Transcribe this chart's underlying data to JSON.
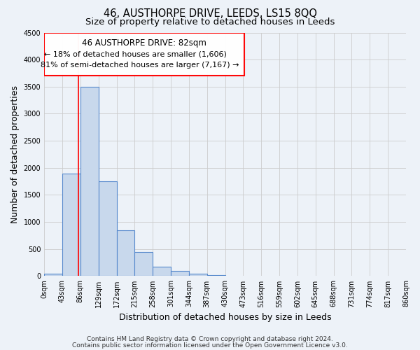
{
  "title": "46, AUSTHORPE DRIVE, LEEDS, LS15 8QQ",
  "subtitle": "Size of property relative to detached houses in Leeds",
  "xlabel": "Distribution of detached houses by size in Leeds",
  "ylabel": "Number of detached properties",
  "bar_left_edges": [
    0,
    43,
    86,
    129,
    172,
    215,
    258,
    301,
    344,
    387,
    430,
    473,
    516,
    559,
    602,
    645,
    688,
    731,
    774,
    817
  ],
  "bar_heights": [
    50,
    1900,
    3500,
    1750,
    850,
    450,
    175,
    90,
    50,
    20,
    0,
    0,
    0,
    0,
    0,
    0,
    0,
    0,
    0,
    0
  ],
  "bin_width": 43,
  "tick_labels": [
    "0sqm",
    "43sqm",
    "86sqm",
    "129sqm",
    "172sqm",
    "215sqm",
    "258sqm",
    "301sqm",
    "344sqm",
    "387sqm",
    "430sqm",
    "473sqm",
    "516sqm",
    "559sqm",
    "602sqm",
    "645sqm",
    "688sqm",
    "731sqm",
    "774sqm",
    "817sqm",
    "860sqm"
  ],
  "bar_color": "#c8d8ec",
  "bar_edge_color": "#5588cc",
  "property_line_x": 82,
  "ylim": [
    0,
    4500
  ],
  "yticks": [
    0,
    500,
    1000,
    1500,
    2000,
    2500,
    3000,
    3500,
    4000,
    4500
  ],
  "xlim_max": 860,
  "annotation_line1": "46 AUSTHORPE DRIVE: 82sqm",
  "annotation_line2": "← 18% of detached houses are smaller (1,606)",
  "annotation_line3": "81% of semi-detached houses are larger (7,167) →",
  "footer_line1": "Contains HM Land Registry data © Crown copyright and database right 2024.",
  "footer_line2": "Contains public sector information licensed under the Open Government Licence v3.0.",
  "background_color": "#edf2f8",
  "grid_color": "#cccccc",
  "title_fontsize": 10.5,
  "subtitle_fontsize": 9.5,
  "axis_label_fontsize": 9,
  "tick_fontsize": 7,
  "annotation_fontsize": 8.5,
  "footer_fontsize": 6.5
}
